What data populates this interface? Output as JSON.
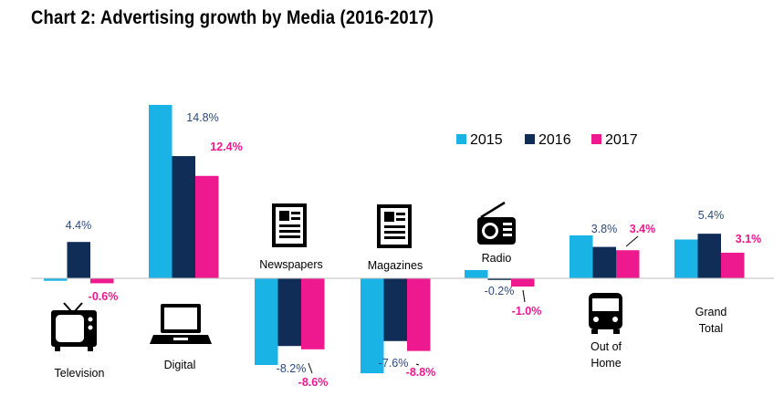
{
  "chart_data": {
    "type": "bar",
    "title": "Chart 2: Advertising growth by Media (2016-2017)",
    "categories": [
      "Television",
      "Digital",
      "Newspapers",
      "Magazines",
      "Radio",
      "Out of Home",
      "Grand Total"
    ],
    "category_labels": [
      [
        "Television"
      ],
      [
        "Digital"
      ],
      [
        "Newspapers"
      ],
      [
        "Magazines"
      ],
      [
        "Radio"
      ],
      [
        "Out of",
        "Home"
      ],
      [
        "Grand",
        "Total"
      ]
    ],
    "series": [
      {
        "name": "2015",
        "color": "#19b3e6",
        "values": [
          -0.3,
          21.0,
          -10.5,
          -11.5,
          1.0,
          5.2,
          4.7
        ]
      },
      {
        "name": "2016",
        "color": "#0f2d57",
        "values": [
          4.4,
          14.8,
          -8.2,
          -7.6,
          -0.2,
          3.8,
          5.4
        ]
      },
      {
        "name": "2017",
        "color": "#ee198e",
        "values": [
          -0.6,
          12.4,
          -8.6,
          -8.8,
          -1.0,
          3.4,
          3.1
        ]
      }
    ],
    "data_labels": [
      {
        "category": "Television",
        "series": "2016",
        "text": "4.4%"
      },
      {
        "category": "Television",
        "series": "2017",
        "text": "-0.6%"
      },
      {
        "category": "Digital",
        "series": "2016",
        "text": "14.8%"
      },
      {
        "category": "Digital",
        "series": "2017",
        "text": "12.4%"
      },
      {
        "category": "Newspapers",
        "series": "2016",
        "text": "-8.2%"
      },
      {
        "category": "Newspapers",
        "series": "2017",
        "text": "-8.6%"
      },
      {
        "category": "Magazines",
        "series": "2016",
        "text": "-7.6%"
      },
      {
        "category": "Magazines",
        "series": "2017",
        "text": "-8.8%"
      },
      {
        "category": "Radio",
        "series": "2016",
        "text": "-0.2%"
      },
      {
        "category": "Radio",
        "series": "2017",
        "text": "-1.0%"
      },
      {
        "category": "Out of Home",
        "series": "2016",
        "text": "3.8%"
      },
      {
        "category": "Out of Home",
        "series": "2017",
        "text": "3.4%"
      },
      {
        "category": "Grand Total",
        "series": "2016",
        "text": "5.4%"
      },
      {
        "category": "Grand Total",
        "series": "2017",
        "text": "3.1%"
      }
    ],
    "legend": {
      "position": "top-right",
      "entries": [
        "2015",
        "2016",
        "2017"
      ]
    },
    "ylim": [
      -12,
      24
    ],
    "grid": false,
    "icons": [
      "television-icon",
      "laptop-icon",
      "newspaper-icon",
      "magazine-icon",
      "radio-icon",
      "bus-icon"
    ]
  }
}
